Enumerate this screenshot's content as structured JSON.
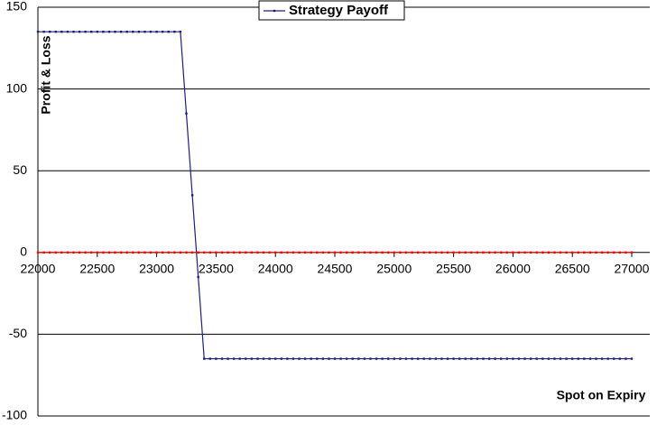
{
  "chart_data": {
    "type": "line",
    "xlabel": "Spot on Expiry",
    "ylabel": "Profit & Loss",
    "x": [
      22000,
      22050,
      22100,
      22150,
      22200,
      22250,
      22300,
      22350,
      22400,
      22450,
      22500,
      22550,
      22600,
      22650,
      22700,
      22750,
      22800,
      22850,
      22900,
      22950,
      23000,
      23050,
      23100,
      23150,
      23200,
      23250,
      23300,
      23350,
      23400,
      23450,
      23500,
      23550,
      23600,
      23650,
      23700,
      23750,
      23800,
      23850,
      23900,
      23950,
      24000,
      24050,
      24100,
      24150,
      24200,
      24250,
      24300,
      24350,
      24400,
      24450,
      24500,
      24550,
      24600,
      24650,
      24700,
      24750,
      24800,
      24850,
      24900,
      24950,
      25000,
      25050,
      25100,
      25150,
      25200,
      25250,
      25300,
      25350,
      25400,
      25450,
      25500,
      25550,
      25600,
      25650,
      25700,
      25750,
      25800,
      25850,
      25900,
      25950,
      26000,
      26050,
      26100,
      26150,
      26200,
      26250,
      26300,
      26350,
      26400,
      26450,
      26500,
      26550,
      26600,
      26650,
      26700,
      26750,
      26800,
      26850,
      26900,
      26950,
      27000
    ],
    "series": [
      {
        "name": "Strategy Payoff",
        "color": "#1f1f7a",
        "values": [
          135,
          135,
          135,
          135,
          135,
          135,
          135,
          135,
          135,
          135,
          135,
          135,
          135,
          135,
          135,
          135,
          135,
          135,
          135,
          135,
          135,
          135,
          135,
          135,
          135,
          85,
          35,
          -15,
          -65,
          -65,
          -65,
          -65,
          -65,
          -65,
          -65,
          -65,
          -65,
          -65,
          -65,
          -65,
          -65,
          -65,
          -65,
          -65,
          -65,
          -65,
          -65,
          -65,
          -65,
          -65,
          -65,
          -65,
          -65,
          -65,
          -65,
          -65,
          -65,
          -65,
          -65,
          -65,
          -65,
          -65,
          -65,
          -65,
          -65,
          -65,
          -65,
          -65,
          -65,
          -65,
          -65,
          -65,
          -65,
          -65,
          -65,
          -65,
          -65,
          -65,
          -65,
          -65,
          -65,
          -65,
          -65,
          -65,
          -65,
          -65,
          -65,
          -65,
          -65,
          -65,
          -65,
          -65,
          -65,
          -65,
          -65,
          -65,
          -65,
          -65,
          -65,
          -65,
          -65
        ]
      },
      {
        "color": "#ff0000",
        "values": [
          0,
          0,
          0,
          0,
          0,
          0,
          0,
          0,
          0,
          0,
          0,
          0,
          0,
          0,
          0,
          0,
          0,
          0,
          0,
          0,
          0,
          0,
          0,
          0,
          0,
          0,
          0,
          0,
          0,
          0,
          0,
          0,
          0,
          0,
          0,
          0,
          0,
          0,
          0,
          0,
          0,
          0,
          0,
          0,
          0,
          0,
          0,
          0,
          0,
          0,
          0,
          0,
          0,
          0,
          0,
          0,
          0,
          0,
          0,
          0,
          0,
          0,
          0,
          0,
          0,
          0,
          0,
          0,
          0,
          0,
          0,
          0,
          0,
          0,
          0,
          0,
          0,
          0,
          0,
          0,
          0,
          0,
          0,
          0,
          0,
          0,
          0,
          0,
          0,
          0,
          0,
          0,
          0,
          0,
          0,
          0,
          0,
          0,
          0,
          0,
          0
        ]
      }
    ],
    "xlim": [
      22000,
      27000
    ],
    "xticks": [
      22000,
      22500,
      23000,
      23500,
      24000,
      24500,
      25000,
      25500,
      26000,
      26500,
      27000
    ],
    "ylim": [
      -100,
      150
    ],
    "yticks": [
      -100,
      -50,
      0,
      50,
      100,
      150
    ],
    "grid": true,
    "legend": "top"
  }
}
